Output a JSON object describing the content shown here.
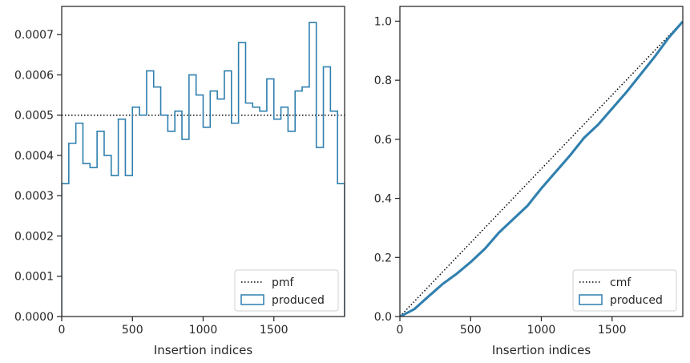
{
  "colors": {
    "produced": "#2f7fae",
    "reference": "#000000",
    "axes": "#262626"
  },
  "chart_data": [
    {
      "type": "line",
      "xlabel": "Insertion indices",
      "ylabel": "",
      "xlim": [
        0,
        2000
      ],
      "ylim": [
        0,
        0.00077
      ],
      "grid": false,
      "legend_position": "bottom-right",
      "x_ticks": [
        0,
        500,
        1000,
        1500
      ],
      "x_tick_labels": [
        "0",
        "500",
        "1000",
        "1500"
      ],
      "y_ticks": [
        0,
        0.0001,
        0.0002,
        0.0003,
        0.0004,
        0.0005,
        0.0006,
        0.0007
      ],
      "y_tick_labels": [
        "0.0000",
        "0.0001",
        "0.0002",
        "0.0003",
        "0.0004",
        "0.0005",
        "0.0006",
        "0.0007"
      ],
      "series": [
        {
          "name": "pmf",
          "style": "dotted",
          "x": [
            0,
            2000
          ],
          "values": [
            0.0005,
            0.0005
          ]
        },
        {
          "name": "produced",
          "style": "step-histogram",
          "bin_edges": [
            0,
            50,
            100,
            150,
            200,
            250,
            300,
            350,
            400,
            450,
            500,
            550,
            600,
            650,
            700,
            750,
            800,
            850,
            900,
            950,
            1000,
            1050,
            1100,
            1150,
            1200,
            1250,
            1300,
            1350,
            1400,
            1450,
            1500,
            1550,
            1600,
            1650,
            1700,
            1750,
            1800,
            1850,
            1900,
            1950,
            2000
          ],
          "values": [
            0.00033,
            0.00043,
            0.00048,
            0.00038,
            0.00037,
            0.00046,
            0.0004,
            0.00035,
            0.00049,
            0.00035,
            0.00052,
            0.0005,
            0.00061,
            0.00057,
            0.0005,
            0.00046,
            0.00051,
            0.00044,
            0.0006,
            0.00055,
            0.00047,
            0.00056,
            0.00054,
            0.00061,
            0.00048,
            0.00068,
            0.00053,
            0.00052,
            0.00051,
            0.00059,
            0.00049,
            0.00052,
            0.00046,
            0.00056,
            0.00057,
            0.00073,
            0.00042,
            0.00062,
            0.00051,
            0.00033
          ]
        }
      ]
    },
    {
      "type": "line",
      "xlabel": "Insertion indices",
      "ylabel": "",
      "xlim": [
        0,
        2000
      ],
      "ylim": [
        0,
        1.05
      ],
      "grid": false,
      "legend_position": "bottom-right",
      "x_ticks": [
        0,
        500,
        1000,
        1500
      ],
      "x_tick_labels": [
        "0",
        "500",
        "1000",
        "1500"
      ],
      "y_ticks": [
        0,
        0.2,
        0.4,
        0.6,
        0.8,
        1.0
      ],
      "y_tick_labels": [
        "0.0",
        "0.2",
        "0.4",
        "0.6",
        "0.8",
        "1.0"
      ],
      "series": [
        {
          "name": "cmf",
          "style": "dotted",
          "x": [
            0,
            2000
          ],
          "values": [
            0,
            1
          ]
        },
        {
          "name": "produced",
          "style": "step",
          "x": [
            0,
            100,
            200,
            300,
            400,
            500,
            600,
            700,
            800,
            900,
            1000,
            1100,
            1200,
            1300,
            1400,
            1500,
            1600,
            1700,
            1800,
            1900,
            2000
          ],
          "values": [
            0,
            0.025,
            0.068,
            0.11,
            0.145,
            0.185,
            0.23,
            0.285,
            0.33,
            0.375,
            0.435,
            0.49,
            0.545,
            0.605,
            0.65,
            0.705,
            0.76,
            0.82,
            0.88,
            0.945,
            1.0
          ]
        }
      ]
    }
  ]
}
